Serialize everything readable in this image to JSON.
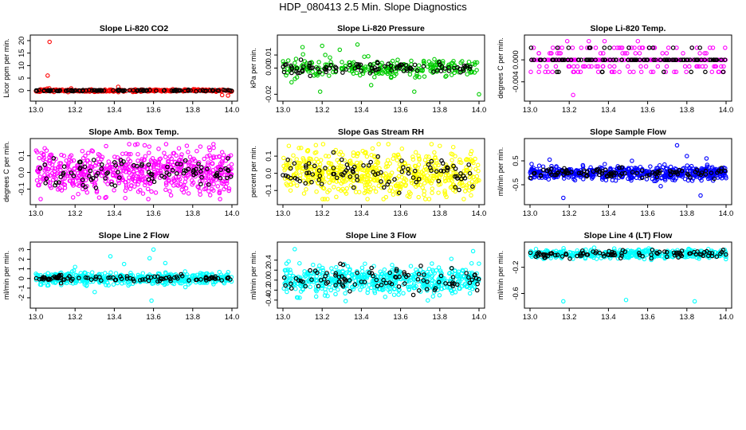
{
  "page": {
    "title": "HDP_080413  2.5 Min. Slope Diagnostics"
  },
  "colors": {
    "red": "#ff0000",
    "green": "#00cc00",
    "magenta": "#ff00ff",
    "yellow": "#ffff00",
    "blue": "#0000ff",
    "cyan": "#00ffff",
    "black": "#000000"
  },
  "chart_data": [
    {
      "type": "scatter",
      "title": "Slope Li-820 CO2",
      "ylabel": "Licor ppm per min.",
      "xlim": [
        13.0,
        14.0
      ],
      "ylim": [
        -2,
        20
      ],
      "xticks": [
        "13.0",
        "13.2",
        "13.4",
        "13.6",
        "13.8",
        "14.0"
      ],
      "yticks": [
        {
          "value": 0,
          "label": "0"
        },
        {
          "value": 5,
          "label": "5"
        },
        {
          "value": 10,
          "label": "10"
        },
        {
          "value": 15,
          "label": "15"
        },
        {
          "value": 20,
          "label": "20"
        }
      ],
      "color": "red",
      "gen": {
        "n": 340,
        "sd": 0.25,
        "seed": 11
      },
      "outliers": [
        {
          "x": 13.07,
          "y": 19.5
        },
        {
          "x": 13.06,
          "y": 6.0
        },
        {
          "x": 13.42,
          "y": 1.5
        },
        {
          "x": 13.98,
          "y": -2.0
        },
        {
          "x": 13.95,
          "y": -1.8
        },
        {
          "x": 13.18,
          "y": 0.9
        }
      ],
      "black": {
        "n": 100,
        "sd": 0.15,
        "seed": 12
      }
    },
    {
      "type": "scatter",
      "title": "Slope Li-820 Pressure",
      "ylabel": "kPa per min.",
      "xlim": [
        13.0,
        14.0
      ],
      "ylim": [
        -0.021,
        0.021
      ],
      "xticks": [
        "13.0",
        "13.2",
        "13.4",
        "13.6",
        "13.8",
        "14.0"
      ],
      "yticks": [
        {
          "value": -0.02,
          "label": "-0.02"
        },
        {
          "value": 0.0,
          "label": "0.00"
        },
        {
          "value": 0.01,
          "label": "0.01"
        }
      ],
      "color": "green",
      "gen": {
        "n": 260,
        "sd": 0.0035,
        "seed": 21
      },
      "outliers": [
        {
          "x": 13.1,
          "y": 0.016
        },
        {
          "x": 13.2,
          "y": 0.017
        },
        {
          "x": 13.38,
          "y": 0.018
        },
        {
          "x": 13.19,
          "y": -0.018
        },
        {
          "x": 13.67,
          "y": -0.018
        },
        {
          "x": 14.0,
          "y": -0.02
        },
        {
          "x": 13.29,
          "y": 0.014
        },
        {
          "x": 13.45,
          "y": -0.013
        }
      ],
      "black": {
        "n": 95,
        "sd": 0.002,
        "seed": 22
      }
    },
    {
      "type": "scatter",
      "title": "Slope Li-820 Temp.",
      "ylabel": "degrees C per min.",
      "xlim": [
        13.0,
        14.0
      ],
      "ylim": [
        -0.0065,
        0.0035
      ],
      "xticks": [
        "13.0",
        "13.2",
        "13.4",
        "13.6",
        "13.8",
        "14.0"
      ],
      "yticks": [
        {
          "value": -0.004,
          "label": "-0.004"
        },
        {
          "value": 0.0,
          "label": "0.000"
        }
      ],
      "color": "magenta",
      "gen": {
        "n": 300,
        "sd": 0,
        "seed": 31,
        "levels": [
          0.0,
          0.0,
          0.0,
          0.0,
          0.0,
          0.0,
          0.0022,
          -0.0022,
          0.0012,
          -0.0012
        ]
      },
      "outliers": [
        {
          "x": 13.22,
          "y": -0.0064
        },
        {
          "x": 13.3,
          "y": 0.0034
        },
        {
          "x": 13.55,
          "y": 0.0034
        },
        {
          "x": 13.19,
          "y": 0.0034
        },
        {
          "x": 13.38,
          "y": 0.0034
        }
      ],
      "black": {
        "n": 110,
        "sd": 0,
        "seed": 32,
        "levels": [
          0.0,
          0.0,
          0.0,
          0.0,
          0.0,
          0.0022,
          -0.0022
        ]
      }
    },
    {
      "type": "scatter",
      "title": "Slope Amb. Box Temp.",
      "ylabel": "degrees C per min.",
      "xlim": [
        13.0,
        14.0
      ],
      "ylim": [
        -0.16,
        0.17
      ],
      "xticks": [
        "13.0",
        "13.2",
        "13.4",
        "13.6",
        "13.8",
        "14.0"
      ],
      "yticks": [
        {
          "value": -0.1,
          "label": "-0.1"
        },
        {
          "value": 0.0,
          "label": "0.0"
        },
        {
          "value": 0.1,
          "label": "0.1"
        }
      ],
      "color": "magenta",
      "gen": {
        "n": 620,
        "sd": 0.065,
        "seed": 41
      },
      "outliers": [
        {
          "x": 13.77,
          "y": 0.16
        },
        {
          "x": 13.19,
          "y": -0.15
        }
      ],
      "black": {
        "n": 95,
        "sd": 0.045,
        "seed": 42
      }
    },
    {
      "type": "scatter",
      "title": "Slope Gas Stream RH",
      "ylabel": "percent per min.",
      "xlim": [
        13.0,
        14.0
      ],
      "ylim": [
        -0.15,
        0.17
      ],
      "xticks": [
        "13.0",
        "13.2",
        "13.4",
        "13.6",
        "13.8",
        "14.0"
      ],
      "yticks": [
        {
          "value": -0.1,
          "label": "-0.1"
        },
        {
          "value": 0.0,
          "label": "0.0"
        },
        {
          "value": 0.1,
          "label": "0.1"
        }
      ],
      "color": "yellow",
      "gen": {
        "n": 600,
        "sd": 0.065,
        "seed": 51
      },
      "outliers": [
        {
          "x": 13.03,
          "y": 0.16
        },
        {
          "x": 13.8,
          "y": 0.16
        }
      ],
      "black": {
        "n": 95,
        "sd": 0.045,
        "seed": 52
      }
    },
    {
      "type": "scatter",
      "title": "Slope Sample Flow",
      "ylabel": "ml/min per min.",
      "xlim": [
        13.0,
        14.0
      ],
      "ylim": [
        -1.1,
        1.2
      ],
      "xticks": [
        "13.0",
        "13.2",
        "13.4",
        "13.6",
        "13.8",
        "14.0"
      ],
      "yticks": [
        {
          "value": -0.5,
          "label": "-0.5"
        },
        {
          "value": 0.5,
          "label": "0.5"
        }
      ],
      "color": "blue",
      "gen": {
        "n": 560,
        "sd": 0.14,
        "seed": 61
      },
      "outliers": [
        {
          "x": 13.75,
          "y": 1.15
        },
        {
          "x": 13.8,
          "y": 0.7
        },
        {
          "x": 13.1,
          "y": 0.55
        },
        {
          "x": 13.17,
          "y": -1.05
        },
        {
          "x": 13.87,
          "y": -0.95
        },
        {
          "x": 13.52,
          "y": 0.5
        },
        {
          "x": 13.9,
          "y": 0.6
        }
      ],
      "black": {
        "n": 95,
        "sd": 0.1,
        "seed": 62
      }
    },
    {
      "type": "scatter",
      "title": "Slope Line 2 Flow",
      "ylabel": "ml/min per min.",
      "xlim": [
        13.0,
        14.0
      ],
      "ylim": [
        -2.5,
        3.2
      ],
      "xticks": [
        "13.0",
        "13.2",
        "13.4",
        "13.6",
        "13.8",
        "14.0"
      ],
      "yticks": [
        {
          "value": -2,
          "label": "-2"
        },
        {
          "value": -1,
          "label": "-1"
        },
        {
          "value": 0,
          "label": "0"
        },
        {
          "value": 1,
          "label": "1"
        },
        {
          "value": 2,
          "label": "2"
        },
        {
          "value": 3,
          "label": "3"
        }
      ],
      "color": "cyan",
      "gen": {
        "n": 520,
        "sd": 0.28,
        "seed": 71
      },
      "outliers": [
        {
          "x": 13.6,
          "y": 3.0
        },
        {
          "x": 13.38,
          "y": 2.3
        },
        {
          "x": 13.58,
          "y": 2.1
        },
        {
          "x": 13.3,
          "y": -1.4
        },
        {
          "x": 13.59,
          "y": -2.3
        },
        {
          "x": 13.45,
          "y": 1.5
        },
        {
          "x": 13.66,
          "y": 1.6
        },
        {
          "x": 13.2,
          "y": 1.2
        }
      ],
      "black": {
        "n": 95,
        "sd": 0.15,
        "seed": 72
      }
    },
    {
      "type": "scatter",
      "title": "Slope Line 3 Flow",
      "ylabel": "ml/min per min.",
      "xlim": [
        13.0,
        14.0
      ],
      "ylim": [
        -0.45,
        0.65
      ],
      "xticks": [
        "13.0",
        "13.2",
        "13.4",
        "13.6",
        "13.8",
        "14.0"
      ],
      "yticks": [
        {
          "value": -0.4,
          "label": "-0.4"
        },
        {
          "value": -0.2,
          "label": "-0.2"
        },
        {
          "value": 0.0,
          "label": "0.0"
        },
        {
          "value": 0.2,
          "label": "0.2"
        },
        {
          "value": 0.4,
          "label": "0.4"
        }
      ],
      "color": "cyan",
      "gen": {
        "n": 560,
        "sd": 0.14,
        "seed": 81
      },
      "outliers": [
        {
          "x": 13.06,
          "y": 0.62
        },
        {
          "x": 13.32,
          "y": -0.42
        },
        {
          "x": 13.97,
          "y": 0.58
        }
      ],
      "black": {
        "n": 95,
        "sd": 0.12,
        "seed": 82
      }
    },
    {
      "type": "scatter",
      "title": "Slope Line 4 (LT) Flow",
      "ylabel": "ml/min per min.",
      "xlim": [
        13.0,
        14.0
      ],
      "ylim": [
        -0.74,
        0.1
      ],
      "xticks": [
        "13.0",
        "13.2",
        "13.4",
        "13.6",
        "13.8",
        "14.0"
      ],
      "yticks": [
        {
          "value": -0.6,
          "label": "-0.6"
        },
        {
          "value": -0.2,
          "label": "-0.2"
        }
      ],
      "color": "cyan",
      "gen": {
        "n": 420,
        "sd": 0.035,
        "seed": 91
      },
      "outliers": [
        {
          "x": 13.17,
          "y": -0.72
        },
        {
          "x": 13.49,
          "y": -0.7
        },
        {
          "x": 13.84,
          "y": -0.72
        }
      ],
      "black": {
        "n": 95,
        "sd": 0.03,
        "seed": 92
      }
    }
  ]
}
